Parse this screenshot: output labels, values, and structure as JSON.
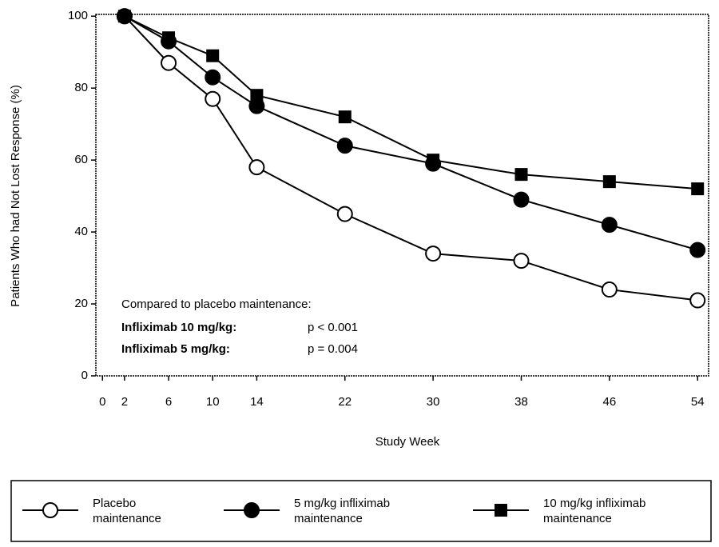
{
  "chart_data": {
    "type": "line",
    "xlabel": "Study Week",
    "ylabel": "Patients Who had Not Lost Response (%)",
    "x": [
      2,
      6,
      10,
      14,
      22,
      30,
      38,
      46,
      54
    ],
    "series": [
      {
        "name": "Placebo maintenance",
        "color": "#000000",
        "marker": "circle-open",
        "values": [
          100,
          87,
          77,
          58,
          45,
          34,
          32,
          24,
          21
        ]
      },
      {
        "name": "5 mg/kg infliximab maintenance",
        "color": "#000000",
        "marker": "circle",
        "values": [
          100,
          93,
          83,
          75,
          64,
          59,
          49,
          42,
          35
        ]
      },
      {
        "name": "10 mg/kg infliximab maintenance",
        "color": "#000000",
        "marker": "square",
        "values": [
          100,
          94,
          89,
          78,
          72,
          60,
          56,
          54,
          52
        ]
      }
    ],
    "xlim": [
      -0.6,
      55
    ],
    "xticks": [
      0,
      2,
      6,
      10,
      14,
      22,
      30,
      38,
      46,
      54
    ],
    "ylim": [
      0,
      100.5
    ],
    "yticks": [
      0,
      20,
      40,
      60,
      80,
      100
    ],
    "annotation": {
      "heading": "Compared to placebo maintenance:",
      "rows": [
        [
          "Infliximab 10 mg/kg:",
          "p < 0.001"
        ],
        [
          "Infliximab 5 mg/kg:",
          "p = 0.004"
        ]
      ]
    },
    "legend_position": "bottom"
  }
}
